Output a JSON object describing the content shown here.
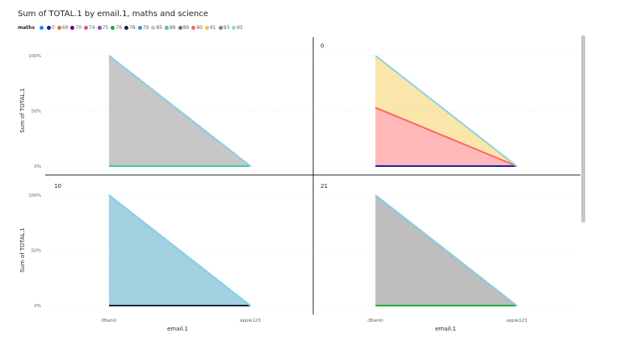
{
  "title": "Sum of TOTAL.1 by email.1, maths and science",
  "legend": {
    "title": "maths",
    "items": [
      {
        "label": "",
        "color": "#118dff"
      },
      {
        "label": "0",
        "color": "#12239e"
      },
      {
        "label": "69",
        "color": "#e66c37"
      },
      {
        "label": "70",
        "color": "#6b007b"
      },
      {
        "label": "74",
        "color": "#e044a7"
      },
      {
        "label": "75",
        "color": "#744ec2"
      },
      {
        "label": "76",
        "color": "#1aab40"
      },
      {
        "label": "78",
        "color": "#15232e"
      },
      {
        "label": "79",
        "color": "#3498bc"
      },
      {
        "label": "85",
        "color": "#e6b7b1"
      },
      {
        "label": "88",
        "color": "#3ec8b4"
      },
      {
        "label": "89",
        "color": "#6e6e6e"
      },
      {
        "label": "90",
        "color": "#ff6464"
      },
      {
        "label": "91",
        "color": "#f5c842"
      },
      {
        "label": "93",
        "color": "#828282"
      },
      {
        "label": "95",
        "color": "#8ad4eb"
      }
    ]
  },
  "chart_data": {
    "type": "area",
    "stacking": "percent",
    "title": "Sum of TOTAL.1 by email.1, maths and science",
    "xlabel": "email.1",
    "ylabel": "Sum of TOTAL.1",
    "categories": [
      "(Blank)",
      "apple123"
    ],
    "y_ticks": [
      "0%",
      "50%",
      "100%"
    ],
    "ylim": [
      0,
      100
    ],
    "facet_by": "science",
    "panels": [
      {
        "label": "",
        "series": [
          {
            "name": "88",
            "color": "#3ec8b4",
            "values": [
              0,
              0
            ]
          },
          {
            "name": "93",
            "color": "#828282",
            "values": [
              100,
              0
            ]
          },
          {
            "name": "95",
            "color": "#8ad4eb",
            "values": [
              0,
              0
            ]
          }
        ]
      },
      {
        "label": "0",
        "series": [
          {
            "name": "0",
            "color": "#12239e",
            "values": [
              0,
              0
            ]
          },
          {
            "name": "90",
            "color": "#ff6464",
            "values": [
              53,
              0
            ]
          },
          {
            "name": "91",
            "color": "#f5c842",
            "values": [
              47,
              0
            ]
          },
          {
            "name": "95",
            "color": "#8ad4eb",
            "values": [
              0,
              0
            ]
          }
        ]
      },
      {
        "label": "10",
        "series": [
          {
            "name": "78",
            "color": "#15232e",
            "values": [
              0,
              0
            ]
          },
          {
            "name": "79",
            "color": "#3498bc",
            "values": [
              100,
              0
            ]
          },
          {
            "name": "95",
            "color": "#8ad4eb",
            "values": [
              0,
              0
            ]
          }
        ]
      },
      {
        "label": "21",
        "series": [
          {
            "name": "76",
            "color": "#1aab40",
            "values": [
              0,
              0
            ]
          },
          {
            "name": "89",
            "color": "#6e6e6e",
            "values": [
              100,
              0
            ]
          },
          {
            "name": "95",
            "color": "#8ad4eb",
            "values": [
              0,
              0
            ]
          }
        ]
      }
    ]
  }
}
